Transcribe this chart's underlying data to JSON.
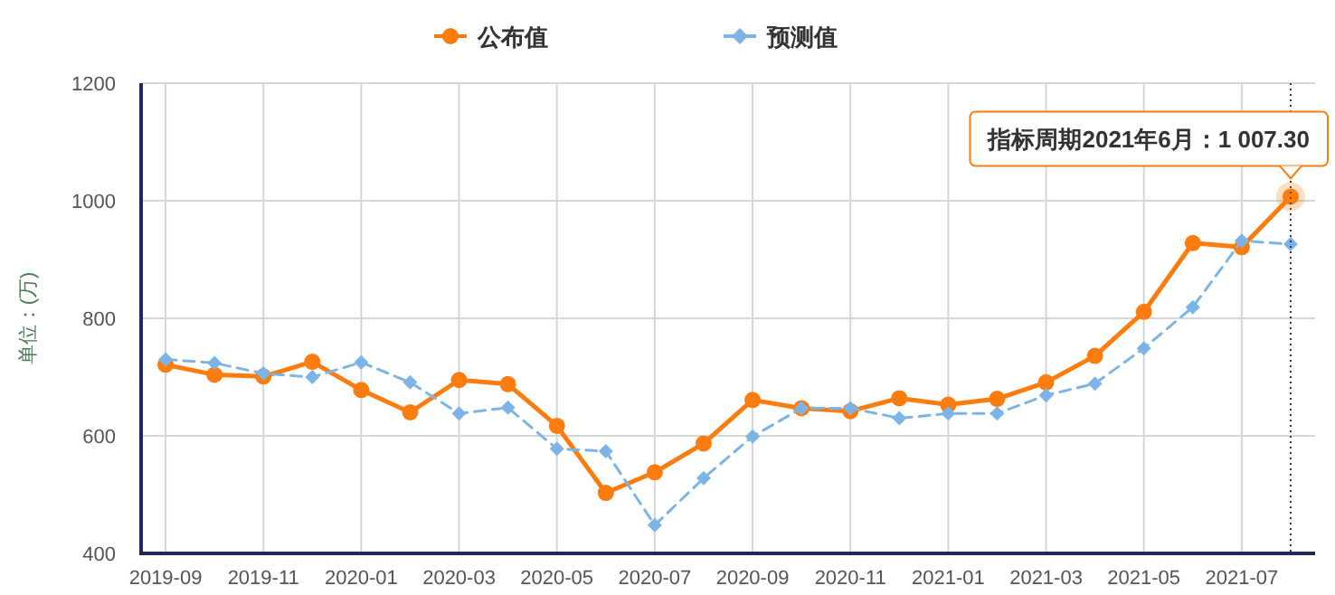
{
  "chart_data": {
    "type": "line",
    "ylabel": "单位：(万)",
    "legend": "top",
    "grid": true,
    "categories": [
      "2019-09",
      null,
      "2019-11",
      null,
      "2020-01",
      null,
      "2020-03",
      null,
      "2020-05",
      null,
      "2020-07",
      null,
      "2020-09",
      null,
      "2020-11",
      null,
      "2021-01",
      null,
      "2021-03",
      null,
      "2021-05",
      null,
      "2021-07",
      null
    ],
    "ylim": [
      400,
      1200
    ],
    "yticks": [
      400,
      600,
      800,
      1000,
      1200
    ],
    "series": [
      {
        "name": "公布值",
        "color": "#fd7c0e",
        "marker": "circle",
        "line_style": "solid",
        "values": [
          721,
          704,
          701,
          726,
          678,
          640,
          695,
          688,
          617,
          503,
          538,
          587,
          661,
          647,
          642,
          664,
          653,
          663,
          691,
          736,
          811,
          928,
          921,
          1007
        ]
      },
      {
        "name": "预测值",
        "color": "#7db4e8",
        "marker": "diamond",
        "line_style": "dashed",
        "values": [
          730,
          724,
          706,
          700,
          725,
          691,
          638,
          648,
          578,
          574,
          448,
          528,
          599,
          647,
          647,
          630,
          638,
          638,
          669,
          689,
          749,
          819,
          932,
          926
        ]
      }
    ],
    "annotations": [
      "指标周期2021年6月：1 007.30"
    ]
  }
}
